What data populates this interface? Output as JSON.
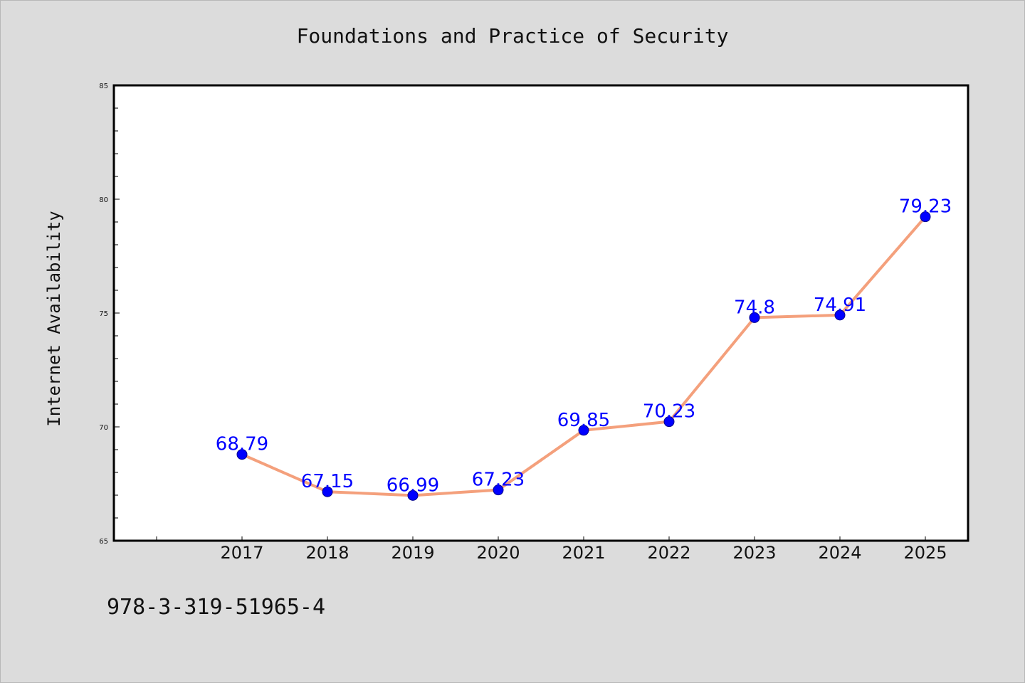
{
  "chart_data": {
    "type": "line",
    "title": "Foundations and Practice of Security",
    "xlabel": "",
    "ylabel": "Internet Availability",
    "categories": [
      "2017",
      "2018",
      "2019",
      "2020",
      "2021",
      "2022",
      "2023",
      "2024",
      "2025"
    ],
    "series": [
      {
        "values": [
          68.79,
          67.15,
          66.99,
          67.23,
          69.85,
          70.23,
          74.8,
          74.91,
          79.23
        ],
        "line_color": "#f4a07c",
        "marker_color": "#0000ff",
        "label_color": "#0000ff"
      }
    ],
    "data_labels": [
      "68.79",
      "67.15",
      "66.99",
      "67.23",
      "69.85",
      "70.23",
      "74.8",
      "74.91",
      "79.23"
    ],
    "ylim": [
      65,
      85
    ],
    "yticks": [
      "65",
      "70",
      "75",
      "80",
      "85"
    ],
    "grid": false,
    "legend": "none"
  },
  "footer": {
    "text": "978-3-319-51965-4"
  }
}
